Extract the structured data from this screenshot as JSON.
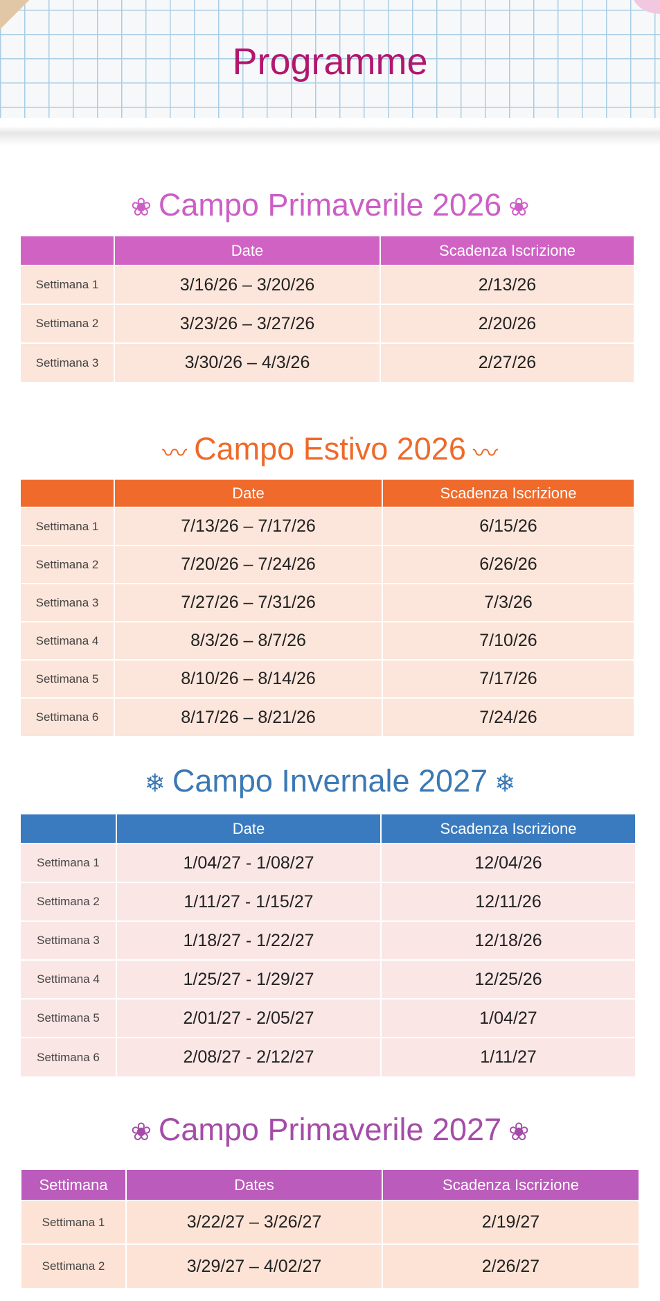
{
  "header": {
    "title": "Programme"
  },
  "sections": [
    {
      "title": "Campo Primaverile 2026",
      "icon": "cherry-blossom-icon",
      "glyph": "❀",
      "color": "#cc5ec6",
      "header_bg": "#d062c4",
      "row_bg": "#fce5da",
      "columns": [
        "",
        "Date",
        "Scadenza Iscrizione"
      ],
      "rows": [
        [
          "Settimana 1",
          "3/16/26 – 3/20/26",
          "2/13/26"
        ],
        [
          "Settimana 2",
          "3/23/26 – 3/27/26",
          "2/20/26"
        ],
        [
          "Settimana 3",
          "3/30/26 – 4/3/26",
          "2/27/26"
        ]
      ]
    },
    {
      "title": "Campo Estivo 2026",
      "icon": "wave-icon",
      "glyph": "〰",
      "color": "#ee6a2a",
      "header_bg": "#ef6a2b",
      "row_bg": "#fce5da",
      "columns": [
        "",
        "Date",
        "Scadenza Iscrizione"
      ],
      "rows": [
        [
          "Settimana 1",
          "7/13/26 – 7/17/26",
          "6/15/26"
        ],
        [
          "Settimana 2",
          "7/20/26 – 7/24/26",
          "6/26/26"
        ],
        [
          "Settimana 3",
          "7/27/26 – 7/31/26",
          "7/3/26"
        ],
        [
          "Settimana 4",
          "8/3/26 – 8/7/26",
          "7/10/26"
        ],
        [
          "Settimana 5",
          "8/10/26 – 8/14/26",
          "7/17/26"
        ],
        [
          "Settimana 6",
          "8/17/26 – 8/21/26",
          "7/24/26"
        ]
      ]
    },
    {
      "title": "Campo Invernale 2027",
      "icon": "snowflake-icon",
      "glyph": "❄",
      "color": "#3b79b5",
      "header_bg": "#3a7bbf",
      "row_bg": "#fbe6e6",
      "columns": [
        "",
        "Date",
        "Scadenza Iscrizione"
      ],
      "rows": [
        [
          "Settimana 1",
          "1/04/27 - 1/08/27",
          "12/04/26"
        ],
        [
          "Settimana 2",
          "1/11/27 - 1/15/27",
          "12/11/26"
        ],
        [
          "Settimana 3",
          "1/18/27 - 1/22/27",
          "12/18/26"
        ],
        [
          "Settimana 4",
          "1/25/27 - 1/29/27",
          "12/25/26"
        ],
        [
          "Settimana 5",
          "2/01/27 - 2/05/27",
          "1/04/27"
        ],
        [
          "Settimana 6",
          "2/08/27 - 2/12/27",
          "1/11/27"
        ]
      ]
    },
    {
      "title": "Campo Primaverile 2027",
      "icon": "cherry-blossom-icon",
      "glyph": "❀",
      "color": "#a44ca8",
      "header_bg": "#bb5bbb",
      "row_bg": "#fce3d6",
      "columns": [
        "Settimana",
        "Dates",
        "Scadenza Iscrizione"
      ],
      "rows": [
        [
          "Settimana 1",
          "3/22/27 – 3/26/27",
          "2/19/27"
        ],
        [
          "Settimana 2",
          "3/29/27 – 4/02/27",
          "2/26/27"
        ]
      ]
    }
  ]
}
